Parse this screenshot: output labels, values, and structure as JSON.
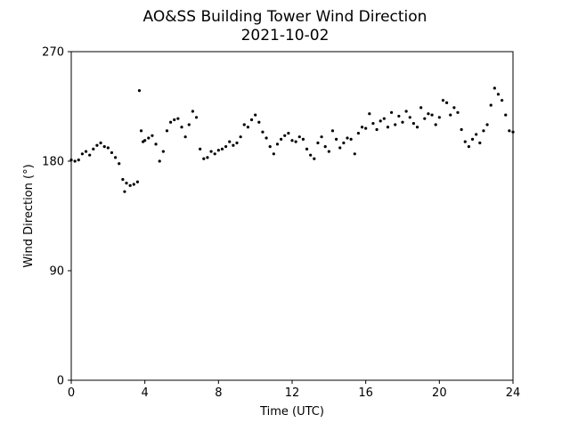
{
  "chart_data": {
    "type": "scatter",
    "title": "AO&SS Building Tower Wind Direction",
    "subtitle": "2021-10-02",
    "xlabel": "Time (UTC)",
    "ylabel": "Wind Direction (°)",
    "xlim": [
      0,
      24
    ],
    "ylim": [
      0,
      270
    ],
    "xticks": [
      0,
      4,
      8,
      12,
      16,
      20,
      24
    ],
    "xtick_labels": [
      "0",
      "4",
      "8",
      "12",
      "16",
      "20",
      "24"
    ],
    "yticks": [
      0,
      90,
      180,
      270
    ],
    "ytick_labels": [
      "0",
      "90",
      "180",
      "270"
    ],
    "grid": false,
    "marker_color": "#000000",
    "series": [
      {
        "x": [
          0.0,
          0.2,
          0.4,
          0.6,
          0.8,
          1.0,
          1.2,
          1.4,
          1.6,
          1.8,
          2.0,
          2.2,
          2.4,
          2.6,
          2.8,
          2.9,
          3.0,
          3.2,
          3.4,
          3.6,
          3.7,
          3.8,
          3.9,
          4.0,
          4.2,
          4.4,
          4.6,
          4.8,
          5.0,
          5.2,
          5.4,
          5.6,
          5.8,
          6.0,
          6.2,
          6.4,
          6.6,
          6.8,
          7.0,
          7.2,
          7.4,
          7.6,
          7.8,
          8.0,
          8.2,
          8.4,
          8.6,
          8.8,
          9.0,
          9.2,
          9.4,
          9.6,
          9.8,
          10.0,
          10.2,
          10.4,
          10.6,
          10.8,
          11.0,
          11.2,
          11.4,
          11.6,
          11.8,
          12.0,
          12.2,
          12.4,
          12.6,
          12.8,
          13.0,
          13.2,
          13.4,
          13.6,
          13.8,
          14.0,
          14.2,
          14.4,
          14.6,
          14.8,
          15.0,
          15.2,
          15.4,
          15.6,
          15.8,
          16.0,
          16.2,
          16.4,
          16.6,
          16.8,
          17.0,
          17.2,
          17.4,
          17.6,
          17.8,
          18.0,
          18.2,
          18.4,
          18.6,
          18.8,
          19.0,
          19.2,
          19.4,
          19.6,
          19.8,
          20.0,
          20.2,
          20.4,
          20.6,
          20.8,
          21.0,
          21.2,
          21.4,
          21.6,
          21.8,
          22.0,
          22.2,
          22.4,
          22.6,
          22.8,
          23.0,
          23.2,
          23.4,
          23.6,
          23.8,
          24.0
        ],
        "y": [
          181,
          180,
          181,
          186,
          188,
          185,
          190,
          193,
          195,
          192,
          191,
          187,
          183,
          178,
          165,
          155,
          162,
          160,
          161,
          163,
          238,
          205,
          196,
          197,
          199,
          201,
          194,
          180,
          188,
          205,
          212,
          214,
          215,
          208,
          200,
          210,
          221,
          216,
          190,
          182,
          183,
          188,
          186,
          189,
          190,
          192,
          196,
          193,
          195,
          200,
          210,
          208,
          214,
          218,
          212,
          204,
          199,
          192,
          186,
          194,
          198,
          201,
          203,
          197,
          196,
          200,
          198,
          190,
          185,
          182,
          195,
          200,
          192,
          188,
          205,
          198,
          191,
          195,
          199,
          198,
          186,
          203,
          208,
          207,
          219,
          211,
          206,
          213,
          215,
          208,
          220,
          210,
          217,
          212,
          221,
          216,
          211,
          208,
          224,
          215,
          219,
          218,
          210,
          216,
          230,
          228,
          218,
          224,
          220,
          206,
          196,
          192,
          198,
          202,
          195,
          205,
          210,
          226,
          240,
          235,
          230,
          218,
          205,
          204
        ]
      }
    ]
  }
}
